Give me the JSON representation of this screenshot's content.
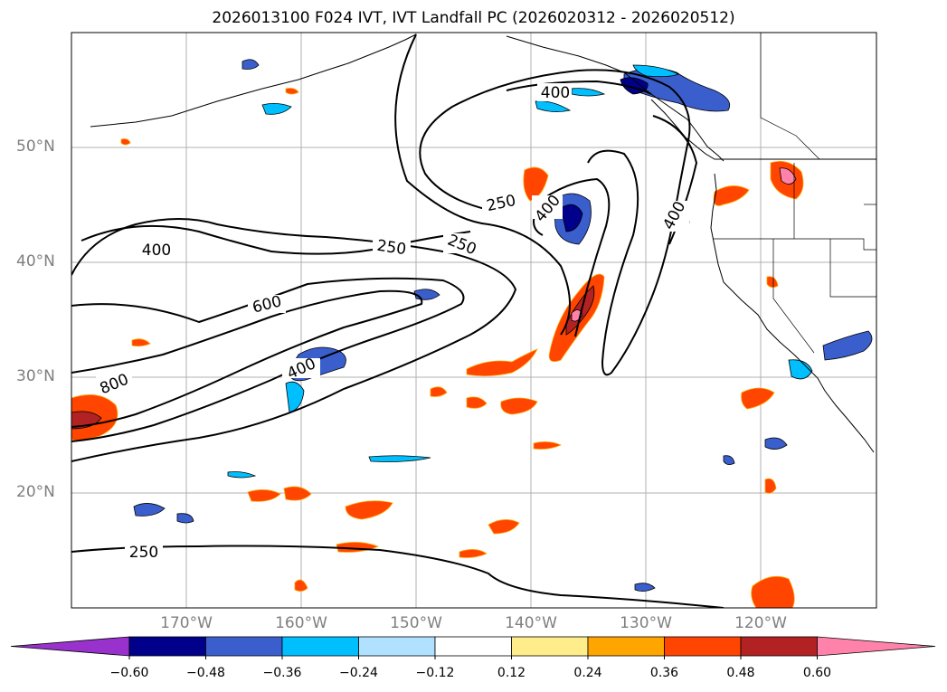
{
  "title": "2026013100 F024 IVT, IVT Landfall PC (2026020312 - 2026020512)",
  "map": {
    "projection": "PlateCarree",
    "lon_range": [
      -180,
      -110
    ],
    "lat_range": [
      10,
      60
    ],
    "lat_labels": [
      "50°N",
      "40°N",
      "30°N",
      "20°N"
    ],
    "lon_labels": [
      "170°W",
      "160°W",
      "150°W",
      "140°W",
      "130°W",
      "120°W"
    ],
    "contour_levels": [
      "250",
      "400",
      "600",
      "800"
    ],
    "contour_labels": [
      "400",
      "250",
      "250",
      "400",
      "400",
      "400",
      "250",
      "600",
      "800",
      "400",
      "250"
    ]
  },
  "colorbar": {
    "tick_labels": [
      "−0.60",
      "−0.48",
      "−0.36",
      "−0.24",
      "−0.12",
      "0.12",
      "0.24",
      "0.36",
      "0.48",
      "0.60"
    ],
    "colors": [
      "#9932cc",
      "#00008b",
      "#3a5fcd",
      "#00bfff",
      "#b0e2ff",
      "#ffffff",
      "#ffec8b",
      "#ffa500",
      "#ff4500",
      "#b22222",
      "#ff82ab"
    ]
  }
}
